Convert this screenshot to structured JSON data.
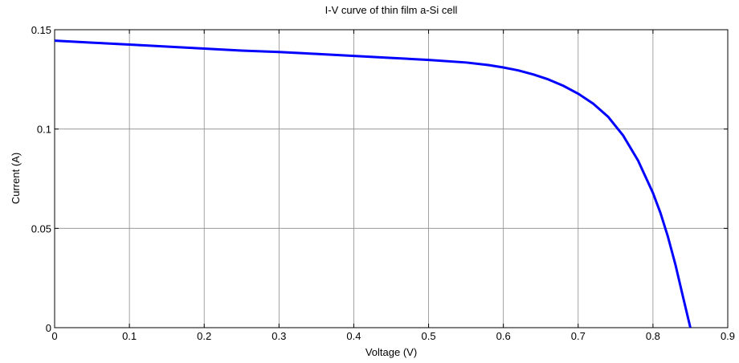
{
  "chart_data": {
    "type": "line",
    "title": "I-V curve of thin film a-Si cell",
    "xlabel": "Voltage (V)",
    "ylabel": "Current (A)",
    "xlim": [
      0,
      0.9
    ],
    "ylim": [
      0,
      0.15
    ],
    "xticks": [
      0,
      0.1,
      0.2,
      0.3,
      0.4,
      0.5,
      0.6,
      0.7,
      0.8,
      0.9
    ],
    "xtick_labels": [
      "0",
      "0.1",
      "0.2",
      "0.3",
      "0.4",
      "0.5",
      "0.6",
      "0.7",
      "0.8",
      "0.9"
    ],
    "yticks": [
      0,
      0.05,
      0.1,
      0.15
    ],
    "ytick_labels": [
      "0",
      "0.05",
      "0.1",
      "0.15"
    ],
    "grid": true,
    "series": [
      {
        "color": "#0000ff",
        "x": [
          0,
          0.05,
          0.1,
          0.15,
          0.2,
          0.25,
          0.3,
          0.35,
          0.4,
          0.45,
          0.5,
          0.55,
          0.58,
          0.6,
          0.62,
          0.64,
          0.66,
          0.68,
          0.7,
          0.72,
          0.74,
          0.76,
          0.78,
          0.8,
          0.81,
          0.82,
          0.83,
          0.84,
          0.85
        ],
        "y": [
          0.1445,
          0.1435,
          0.1425,
          0.1415,
          0.1405,
          0.1395,
          0.1388,
          0.1378,
          0.1368,
          0.1358,
          0.1348,
          0.1335,
          0.1322,
          0.131,
          0.1295,
          0.1275,
          0.125,
          0.1218,
          0.1178,
          0.1128,
          0.1062,
          0.0968,
          0.0842,
          0.0678,
          0.0578,
          0.0458,
          0.0318,
          0.0158,
          0.0
        ]
      }
    ]
  }
}
